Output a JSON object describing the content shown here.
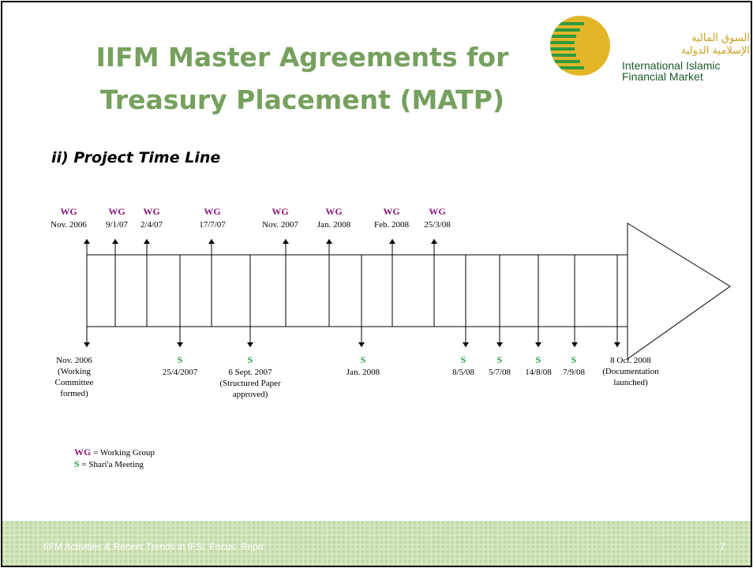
{
  "header": {
    "title_lines": [
      "IIFM Master Agreements for",
      "Treasury Placement (MATP)"
    ],
    "logo": {
      "arabic": [
        "السوق المالية",
        "الإسلامية الدولية"
      ],
      "english": [
        "International Islamic",
        "Financial Market"
      ]
    }
  },
  "subtitle": "ii) Project Time Line",
  "timeline": {
    "above": [
      {
        "label": "WG",
        "date": "Nov. 2006"
      },
      {
        "label": "WG",
        "date": "9/1/07"
      },
      {
        "label": "WG",
        "date": "2/4/07"
      },
      {
        "label": "WG",
        "date": "17/7/07"
      },
      {
        "label": "WG",
        "date": "Nov. 2007"
      },
      {
        "label": "WG",
        "date": "Jan. 2008"
      },
      {
        "label": "WG",
        "date": "Feb. 2008"
      },
      {
        "label": "WG",
        "date": "25/3/08"
      }
    ],
    "below": [
      {
        "lines": [
          "Nov. 2006",
          "(Working",
          "Committee",
          "formed)"
        ]
      },
      {
        "label": "S",
        "lines": [
          "25/4/2007"
        ]
      },
      {
        "label": "S",
        "lines": [
          "6 Sept. 2007",
          "(Structured Paper",
          "approved)"
        ]
      },
      {
        "label": "S",
        "lines": [
          "Jan. 2008"
        ]
      },
      {
        "label": "S",
        "lines": [
          "8/5/08"
        ]
      },
      {
        "label": "S",
        "lines": [
          "5/7/08"
        ]
      },
      {
        "label": "S",
        "lines": [
          "14/8/08"
        ]
      },
      {
        "label": "S",
        "lines": [
          "7/9/08"
        ]
      },
      {
        "lines": [
          "8 Oct. 2008",
          "(Documentation",
          "launched)"
        ]
      }
    ]
  },
  "legend": [
    {
      "key": "WG",
      "text": "= Working Group"
    },
    {
      "key": "S",
      "text": "= Shari'a Meeting"
    }
  ],
  "footer": {
    "text": "IIFM Activities & Recent Trends in IFSI 'Focus: Repo'",
    "page": 7
  }
}
